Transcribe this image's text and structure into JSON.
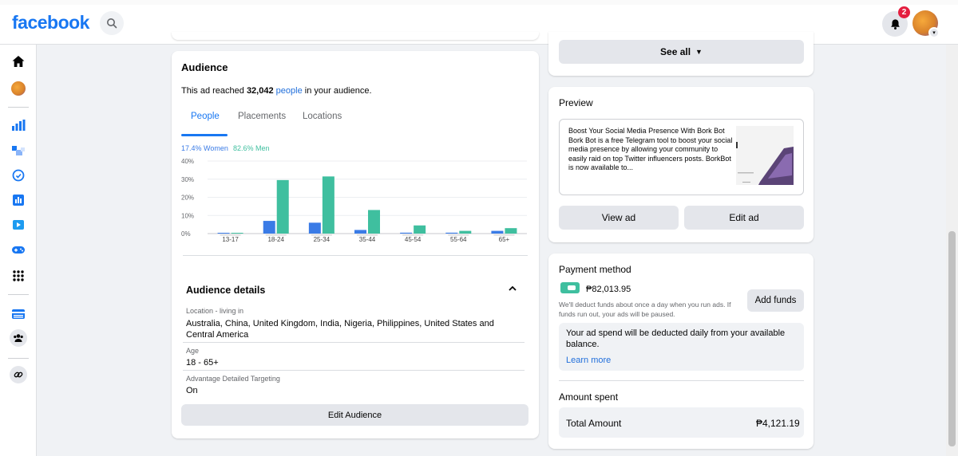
{
  "topbar": {
    "logo": "facebook",
    "notifications_count": "2"
  },
  "rail": {
    "icons": [
      "home-icon",
      "profile-icon",
      "ads-manager-icon",
      "audience-icon",
      "meta-business-icon",
      "insights-icon",
      "video-icon",
      "gaming-icon",
      "apps-icon",
      "marketplace-icon",
      "groups-icon",
      "link-icon"
    ]
  },
  "audience_card": {
    "title": "Audience",
    "reach_prefix": "This ad reached ",
    "reach_count": "32,042",
    "reach_link": "people",
    "reach_suffix": " in your audience.",
    "tabs": [
      "People",
      "Placements",
      "Locations"
    ],
    "active_tab": "People",
    "women_label": "17.4% Women",
    "men_label": "82.6% Men",
    "colors": {
      "women": "#3a7be6",
      "men": "#3fbf9f"
    }
  },
  "chart_data": {
    "type": "bar",
    "categories": [
      "13-17",
      "18-24",
      "25-34",
      "35-44",
      "45-54",
      "55-64",
      "65+"
    ],
    "series": [
      {
        "name": "17.4% Women",
        "values": [
          0.2,
          7,
          6,
          2,
          0.5,
          0.5,
          1.5
        ]
      },
      {
        "name": "82.6% Men",
        "values": [
          0.2,
          29.5,
          31.5,
          13,
          4.5,
          1.5,
          3
        ]
      }
    ],
    "yticks": [
      "0%",
      "10%",
      "20%",
      "30%",
      "40%"
    ],
    "ylim": [
      0,
      40
    ],
    "grid": true
  },
  "audience_details": {
    "title": "Audience details",
    "location_label": "Location - living in",
    "location_value": "Australia, China, United Kingdom, India, Nigeria, Philippines, United States and Central America",
    "age_label": "Age",
    "age_value": "18 - 65+",
    "targeting_label": "Advantage Detailed Targeting",
    "targeting_value": "On",
    "edit_button": "Edit Audience"
  },
  "right_column": {
    "see_all": "See all",
    "preview": {
      "title": "Preview",
      "text": "Boost Your Social Media Presence With Bork Bot Bork Bot is a free Telegram tool to boost your social media presence by allowing your community to easily raid on top Twitter influencers posts. BorkBot is now available to...",
      "view_ad": "View ad",
      "edit_ad": "Edit ad"
    },
    "payment": {
      "title": "Payment method",
      "balance": "₱82,013.95",
      "note": "We'll deduct funds about once a day when you run ads. If funds run out, your ads will be paused.",
      "add_funds": "Add funds",
      "info": "Your ad spend will be deducted daily from your available balance.",
      "learn_more": "Learn more"
    },
    "amount_spent": {
      "title": "Amount spent",
      "total_label": "Total Amount",
      "total_value": "₱4,121.19"
    }
  }
}
